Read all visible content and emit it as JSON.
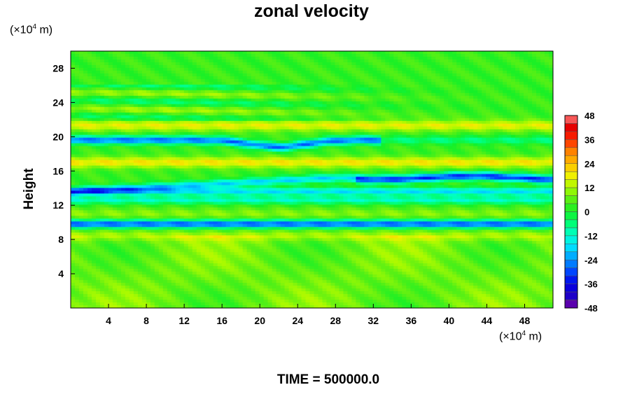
{
  "chart_data": {
    "type": "heatmap",
    "title": "zonal velocity",
    "ylabel": "Height",
    "x_unit_prefix": "(×10",
    "x_unit_exp": "4",
    "x_unit_suffix": " m)",
    "y_unit_prefix": "(×10",
    "y_unit_exp": "4",
    "y_unit_suffix": " m)",
    "xlim": [
      0,
      51
    ],
    "ylim": [
      0,
      30
    ],
    "x_ticks": [
      4,
      8,
      12,
      16,
      20,
      24,
      28,
      32,
      36,
      40,
      44,
      48
    ],
    "y_ticks": [
      4,
      8,
      12,
      16,
      20,
      24,
      28
    ],
    "colorbar": {
      "min": -48,
      "max": 48,
      "step": 4,
      "labels": [
        48,
        36,
        24,
        12,
        0,
        -12,
        -24,
        -36,
        -48
      ]
    },
    "grid": false,
    "field_description_bands": [
      {
        "y": 21.3,
        "value": 14
      },
      {
        "y": 19.6,
        "value": -30
      },
      {
        "y": 17.0,
        "value": 16
      },
      {
        "y": 15.2,
        "value": -26
      },
      {
        "y": 13.6,
        "value": -20
      },
      {
        "y": 12.6,
        "value": -14
      },
      {
        "y": 11.0,
        "value": 6
      },
      {
        "y": 9.8,
        "value": -32
      },
      {
        "y": 8.5,
        "value": 8
      }
    ],
    "caption": "TIME = 500000.0"
  }
}
